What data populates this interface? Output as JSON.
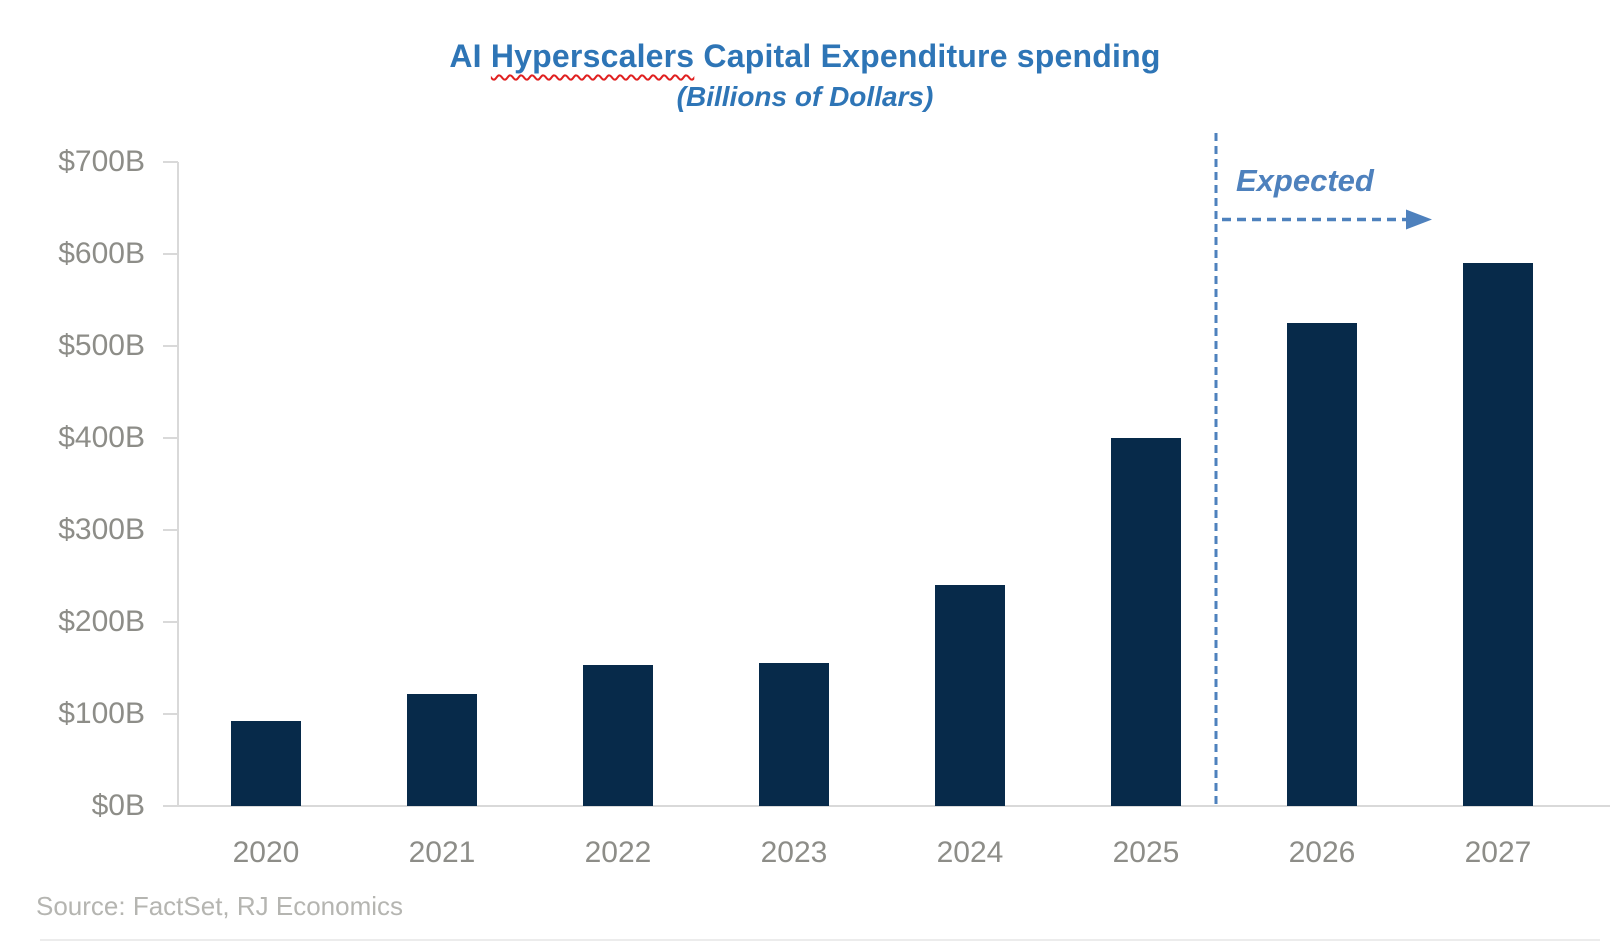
{
  "chart": {
    "title": {
      "prefix": "AI ",
      "misspelled_word": "Hyperscalers",
      "suffix": " Capital Expenditure spending"
    },
    "subtitle": "(Billions of Dollars)",
    "annotation": {
      "label": "Expected"
    },
    "source": "Source: FactSet, RJ Economics",
    "colors": {
      "title_blue": "#2E75B6",
      "annotation_blue": "#4E81BD",
      "bar_navy": "#072A4A",
      "axis_grey": "#D9D9D9",
      "label_grey": "#8D8D88",
      "source_grey": "#B5B5B1",
      "squiggle_red": "#E02020",
      "bottom_border_grey": "#ECECEC"
    }
  },
  "chart_data": {
    "type": "bar",
    "title": "AI Hyperscalers Capital Expenditure spending",
    "subtitle": "(Billions of Dollars)",
    "unit": "billions of US dollars",
    "categories": [
      "2020",
      "2021",
      "2022",
      "2023",
      "2024",
      "2025",
      "2026",
      "2027"
    ],
    "values": [
      92,
      122,
      153,
      155,
      240,
      400,
      525,
      590
    ],
    "xlabel": "",
    "ylabel": "",
    "ylim": [
      0,
      700
    ],
    "y_tick_step": 100,
    "y_tick_labels": [
      "$0B",
      "$100B",
      "$200B",
      "$300B",
      "$400B",
      "$500B",
      "$600B",
      "$700B"
    ],
    "grid": false,
    "legend": false,
    "annotations": [
      {
        "text": "Expected",
        "type": "forecast-divider",
        "between": [
          "2025",
          "2026"
        ],
        "applies_to": [
          "2026",
          "2027"
        ]
      }
    ],
    "source": "Source: FactSet, RJ Economics"
  }
}
